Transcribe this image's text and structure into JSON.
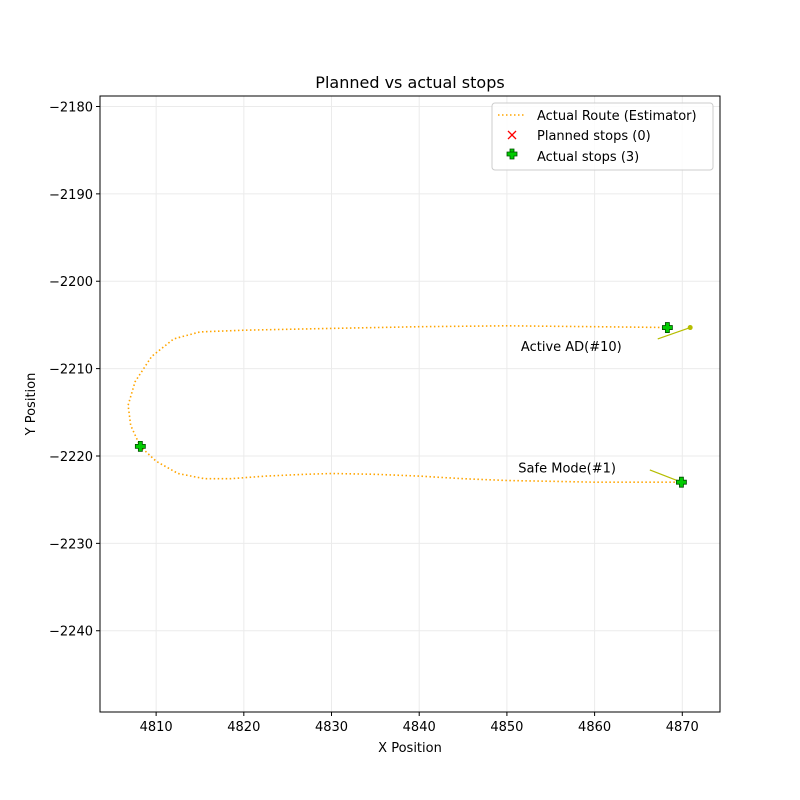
{
  "chart_data": {
    "type": "line",
    "title": "Planned vs actual stops",
    "xlabel": "X Position",
    "ylabel": "Y Position",
    "xlim": [
      4803.6,
      4874.3
    ],
    "ylim": [
      -2249.3,
      -2178.8
    ],
    "xticks": [
      4810,
      4820,
      4830,
      4840,
      4850,
      4860,
      4870
    ],
    "yticks": [
      -2180,
      -2190,
      -2200,
      -2210,
      -2220,
      -2230,
      -2240
    ],
    "grid": true,
    "legend_position": "top-right",
    "legend": [
      {
        "label": "Actual Route (Estimator)",
        "marker": "dotted-line",
        "color": "#ffa500"
      },
      {
        "label": "Planned stops (0)",
        "marker": "x",
        "color": "#ff0000"
      },
      {
        "label": "Actual stops (3)",
        "marker": "plus",
        "color": "#00cc00"
      }
    ],
    "series": [
      {
        "kind": "route",
        "color": "#ffa500",
        "points": [
          [
            4868.3,
            -2205.3
          ],
          [
            4860.0,
            -2205.2
          ],
          [
            4850.0,
            -2205.1
          ],
          [
            4840.0,
            -2205.2
          ],
          [
            4830.0,
            -2205.4
          ],
          [
            4820.0,
            -2205.6
          ],
          [
            4815.0,
            -2205.8
          ],
          [
            4812.0,
            -2206.6
          ],
          [
            4809.5,
            -2208.6
          ],
          [
            4807.6,
            -2211.5
          ],
          [
            4806.8,
            -2214.2
          ],
          [
            4807.1,
            -2216.5
          ],
          [
            4808.2,
            -2218.9
          ],
          [
            4810.0,
            -2220.6
          ],
          [
            4812.5,
            -2222.0
          ],
          [
            4815.5,
            -2222.6
          ],
          [
            4818.5,
            -2222.6
          ],
          [
            4822.5,
            -2222.3
          ],
          [
            4827.0,
            -2222.1
          ],
          [
            4830.0,
            -2222.0
          ],
          [
            4835.0,
            -2222.1
          ],
          [
            4840.0,
            -2222.3
          ],
          [
            4845.0,
            -2222.6
          ],
          [
            4850.0,
            -2222.8
          ],
          [
            4855.0,
            -2222.9
          ],
          [
            4860.0,
            -2223.0
          ],
          [
            4865.0,
            -2223.0
          ],
          [
            4870.0,
            -2223.0
          ]
        ]
      }
    ],
    "planned_stops": [],
    "actual_stops": [
      {
        "x": 4868.3,
        "y": -2205.3
      },
      {
        "x": 4808.2,
        "y": -2218.9
      },
      {
        "x": 4869.9,
        "y": -2223.0
      }
    ],
    "annotations": [
      {
        "text": "Active AD(#10)",
        "text_x": 4851.6,
        "text_y": -2207.4,
        "target_x": 4870.9,
        "target_y": -2205.3,
        "line_start_x": 4867.2,
        "line_start_y": -2206.6,
        "color": "#b5bd00"
      },
      {
        "text": "Safe Mode(#1)",
        "text_x": 4851.3,
        "text_y": -2221.3,
        "target_x": 4869.9,
        "target_y": -2223.0,
        "line_start_x": 4866.3,
        "line_start_y": -2221.6,
        "color": "#b5bd00"
      }
    ]
  }
}
